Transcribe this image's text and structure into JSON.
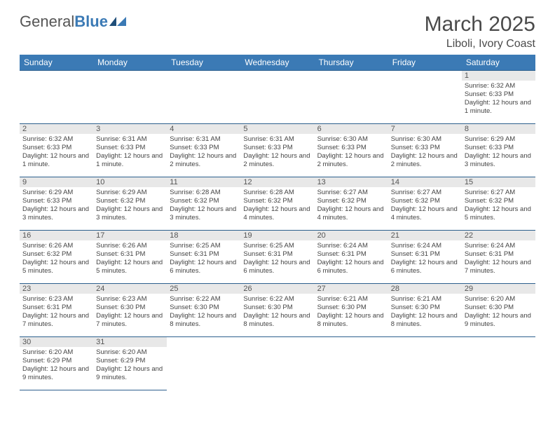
{
  "logo": {
    "text1": "General",
    "text2": "Blue"
  },
  "title": "March 2025",
  "location": "Liboli, Ivory Coast",
  "colors": {
    "header_bg": "#3b7ab5",
    "header_text": "#ffffff",
    "border": "#2c5f8d",
    "daynum_bg": "#e8e8e8",
    "text": "#444444"
  },
  "day_headers": [
    "Sunday",
    "Monday",
    "Tuesday",
    "Wednesday",
    "Thursday",
    "Friday",
    "Saturday"
  ],
  "weeks": [
    [
      {
        "empty": true
      },
      {
        "empty": true
      },
      {
        "empty": true
      },
      {
        "empty": true
      },
      {
        "empty": true
      },
      {
        "empty": true
      },
      {
        "num": "1",
        "sunrise": "Sunrise: 6:32 AM",
        "sunset": "Sunset: 6:33 PM",
        "daylight": "Daylight: 12 hours and 1 minute."
      }
    ],
    [
      {
        "num": "2",
        "sunrise": "Sunrise: 6:32 AM",
        "sunset": "Sunset: 6:33 PM",
        "daylight": "Daylight: 12 hours and 1 minute."
      },
      {
        "num": "3",
        "sunrise": "Sunrise: 6:31 AM",
        "sunset": "Sunset: 6:33 PM",
        "daylight": "Daylight: 12 hours and 1 minute."
      },
      {
        "num": "4",
        "sunrise": "Sunrise: 6:31 AM",
        "sunset": "Sunset: 6:33 PM",
        "daylight": "Daylight: 12 hours and 2 minutes."
      },
      {
        "num": "5",
        "sunrise": "Sunrise: 6:31 AM",
        "sunset": "Sunset: 6:33 PM",
        "daylight": "Daylight: 12 hours and 2 minutes."
      },
      {
        "num": "6",
        "sunrise": "Sunrise: 6:30 AM",
        "sunset": "Sunset: 6:33 PM",
        "daylight": "Daylight: 12 hours and 2 minutes."
      },
      {
        "num": "7",
        "sunrise": "Sunrise: 6:30 AM",
        "sunset": "Sunset: 6:33 PM",
        "daylight": "Daylight: 12 hours and 2 minutes."
      },
      {
        "num": "8",
        "sunrise": "Sunrise: 6:29 AM",
        "sunset": "Sunset: 6:33 PM",
        "daylight": "Daylight: 12 hours and 3 minutes."
      }
    ],
    [
      {
        "num": "9",
        "sunrise": "Sunrise: 6:29 AM",
        "sunset": "Sunset: 6:33 PM",
        "daylight": "Daylight: 12 hours and 3 minutes."
      },
      {
        "num": "10",
        "sunrise": "Sunrise: 6:29 AM",
        "sunset": "Sunset: 6:32 PM",
        "daylight": "Daylight: 12 hours and 3 minutes."
      },
      {
        "num": "11",
        "sunrise": "Sunrise: 6:28 AM",
        "sunset": "Sunset: 6:32 PM",
        "daylight": "Daylight: 12 hours and 3 minutes."
      },
      {
        "num": "12",
        "sunrise": "Sunrise: 6:28 AM",
        "sunset": "Sunset: 6:32 PM",
        "daylight": "Daylight: 12 hours and 4 minutes."
      },
      {
        "num": "13",
        "sunrise": "Sunrise: 6:27 AM",
        "sunset": "Sunset: 6:32 PM",
        "daylight": "Daylight: 12 hours and 4 minutes."
      },
      {
        "num": "14",
        "sunrise": "Sunrise: 6:27 AM",
        "sunset": "Sunset: 6:32 PM",
        "daylight": "Daylight: 12 hours and 4 minutes."
      },
      {
        "num": "15",
        "sunrise": "Sunrise: 6:27 AM",
        "sunset": "Sunset: 6:32 PM",
        "daylight": "Daylight: 12 hours and 5 minutes."
      }
    ],
    [
      {
        "num": "16",
        "sunrise": "Sunrise: 6:26 AM",
        "sunset": "Sunset: 6:32 PM",
        "daylight": "Daylight: 12 hours and 5 minutes."
      },
      {
        "num": "17",
        "sunrise": "Sunrise: 6:26 AM",
        "sunset": "Sunset: 6:31 PM",
        "daylight": "Daylight: 12 hours and 5 minutes."
      },
      {
        "num": "18",
        "sunrise": "Sunrise: 6:25 AM",
        "sunset": "Sunset: 6:31 PM",
        "daylight": "Daylight: 12 hours and 6 minutes."
      },
      {
        "num": "19",
        "sunrise": "Sunrise: 6:25 AM",
        "sunset": "Sunset: 6:31 PM",
        "daylight": "Daylight: 12 hours and 6 minutes."
      },
      {
        "num": "20",
        "sunrise": "Sunrise: 6:24 AM",
        "sunset": "Sunset: 6:31 PM",
        "daylight": "Daylight: 12 hours and 6 minutes."
      },
      {
        "num": "21",
        "sunrise": "Sunrise: 6:24 AM",
        "sunset": "Sunset: 6:31 PM",
        "daylight": "Daylight: 12 hours and 6 minutes."
      },
      {
        "num": "22",
        "sunrise": "Sunrise: 6:24 AM",
        "sunset": "Sunset: 6:31 PM",
        "daylight": "Daylight: 12 hours and 7 minutes."
      }
    ],
    [
      {
        "num": "23",
        "sunrise": "Sunrise: 6:23 AM",
        "sunset": "Sunset: 6:31 PM",
        "daylight": "Daylight: 12 hours and 7 minutes."
      },
      {
        "num": "24",
        "sunrise": "Sunrise: 6:23 AM",
        "sunset": "Sunset: 6:30 PM",
        "daylight": "Daylight: 12 hours and 7 minutes."
      },
      {
        "num": "25",
        "sunrise": "Sunrise: 6:22 AM",
        "sunset": "Sunset: 6:30 PM",
        "daylight": "Daylight: 12 hours and 8 minutes."
      },
      {
        "num": "26",
        "sunrise": "Sunrise: 6:22 AM",
        "sunset": "Sunset: 6:30 PM",
        "daylight": "Daylight: 12 hours and 8 minutes."
      },
      {
        "num": "27",
        "sunrise": "Sunrise: 6:21 AM",
        "sunset": "Sunset: 6:30 PM",
        "daylight": "Daylight: 12 hours and 8 minutes."
      },
      {
        "num": "28",
        "sunrise": "Sunrise: 6:21 AM",
        "sunset": "Sunset: 6:30 PM",
        "daylight": "Daylight: 12 hours and 8 minutes."
      },
      {
        "num": "29",
        "sunrise": "Sunrise: 6:20 AM",
        "sunset": "Sunset: 6:30 PM",
        "daylight": "Daylight: 12 hours and 9 minutes."
      }
    ],
    [
      {
        "num": "30",
        "sunrise": "Sunrise: 6:20 AM",
        "sunset": "Sunset: 6:29 PM",
        "daylight": "Daylight: 12 hours and 9 minutes."
      },
      {
        "num": "31",
        "sunrise": "Sunrise: 6:20 AM",
        "sunset": "Sunset: 6:29 PM",
        "daylight": "Daylight: 12 hours and 9 minutes."
      },
      {
        "empty": true
      },
      {
        "empty": true
      },
      {
        "empty": true
      },
      {
        "empty": true
      },
      {
        "empty": true
      }
    ]
  ]
}
